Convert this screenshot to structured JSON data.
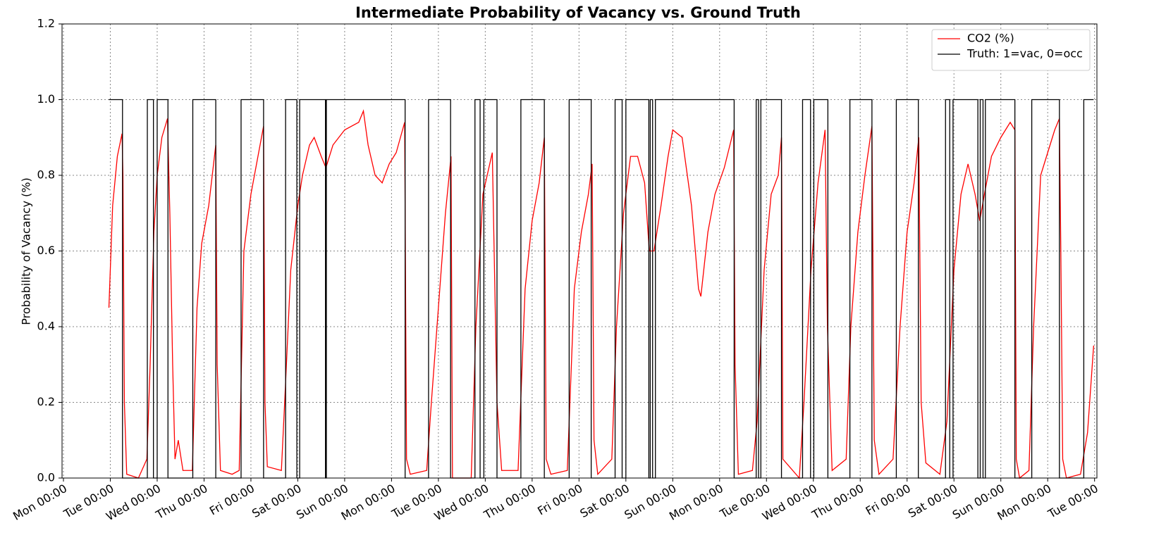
{
  "chart_data": {
    "type": "line",
    "title": "Intermediate Probability of Vacancy vs. Ground Truth",
    "y_label": "Probability of Vacancy (%)",
    "xlim": [
      -0.03,
      22.05
    ],
    "ylim": [
      0,
      1.2
    ],
    "xticks": [
      {
        "value": 0,
        "label": "Mon 00:00"
      },
      {
        "value": 1,
        "label": "Tue 00:00"
      },
      {
        "value": 2,
        "label": "Wed 00:00"
      },
      {
        "value": 3,
        "label": "Thu 00:00"
      },
      {
        "value": 4,
        "label": "Fri 00:00"
      },
      {
        "value": 5,
        "label": "Sat 00:00"
      },
      {
        "value": 6,
        "label": "Sun 00:00"
      },
      {
        "value": 7,
        "label": "Mon 00:00"
      },
      {
        "value": 8,
        "label": "Tue 00:00"
      },
      {
        "value": 9,
        "label": "Wed 00:00"
      },
      {
        "value": 10,
        "label": "Thu 00:00"
      },
      {
        "value": 11,
        "label": "Fri 00:00"
      },
      {
        "value": 12,
        "label": "Sat 00:00"
      },
      {
        "value": 13,
        "label": "Sun 00:00"
      },
      {
        "value": 14,
        "label": "Mon 00:00"
      },
      {
        "value": 15,
        "label": "Tue 00:00"
      },
      {
        "value": 16,
        "label": "Wed 00:00"
      },
      {
        "value": 17,
        "label": "Thu 00:00"
      },
      {
        "value": 18,
        "label": "Fri 00:00"
      },
      {
        "value": 19,
        "label": "Sat 00:00"
      },
      {
        "value": 20,
        "label": "Sun 00:00"
      },
      {
        "value": 21,
        "label": "Mon 00:00"
      },
      {
        "value": 22,
        "label": "Tue 00:00"
      }
    ],
    "yticks": [
      {
        "value": 0,
        "label": "0.0"
      },
      0.2,
      0.4,
      0.6,
      0.8,
      {
        "value": 1,
        "label": "1.0"
      },
      1.2
    ],
    "grid": true,
    "legend": "upper right",
    "series": [
      {
        "name": "CO2 (%)",
        "color": "#ff0000",
        "x": [
          0.97,
          1.05,
          1.15,
          1.25,
          1.27,
          1.3,
          1.35,
          1.6,
          1.78,
          1.85,
          1.93,
          2.0,
          2.1,
          2.22,
          2.27,
          2.33,
          2.38,
          2.45,
          2.55,
          2.75,
          2.85,
          2.95,
          3.1,
          3.25,
          3.28,
          3.35,
          3.6,
          3.75,
          3.85,
          4.0,
          4.15,
          4.27,
          4.3,
          4.35,
          4.65,
          4.72,
          4.85,
          5.0,
          5.1,
          5.25,
          5.35,
          5.5,
          5.6,
          5.75,
          6.0,
          6.3,
          6.4,
          6.5,
          6.65,
          6.8,
          6.95,
          7.1,
          7.28,
          7.32,
          7.4,
          7.75,
          7.85,
          8.0,
          8.15,
          8.27,
          8.3,
          8.7,
          8.8,
          8.95,
          9.15,
          9.25,
          9.35,
          9.7,
          9.85,
          10.0,
          10.15,
          10.26,
          10.3,
          10.4,
          10.75,
          10.9,
          11.05,
          11.2,
          11.28,
          11.32,
          11.4,
          11.7,
          11.8,
          11.95,
          12.1,
          12.25,
          12.4,
          12.5,
          12.6,
          12.75,
          12.9,
          13.0,
          13.2,
          13.4,
          13.55,
          13.6,
          13.75,
          13.9,
          14.1,
          14.3,
          14.33,
          14.4,
          14.7,
          14.8,
          14.95,
          15.1,
          15.25,
          15.32,
          15.35,
          15.7,
          15.8,
          15.95,
          16.1,
          16.25,
          16.3,
          16.4,
          16.7,
          16.8,
          16.95,
          17.1,
          17.25,
          17.3,
          17.4,
          17.7,
          17.85,
          18.0,
          18.15,
          18.25,
          18.3,
          18.4,
          18.7,
          18.85,
          19.0,
          19.15,
          19.3,
          19.45,
          19.55,
          19.65,
          19.8,
          20.0,
          20.2,
          20.3,
          20.33,
          20.4,
          20.6,
          20.7,
          20.85,
          21.0,
          21.15,
          21.25,
          21.28,
          21.32,
          21.4,
          21.7,
          21.85,
          21.98
        ],
        "values": [
          0.45,
          0.72,
          0.85,
          0.91,
          0.8,
          0.2,
          0.01,
          0,
          0.05,
          0.3,
          0.65,
          0.8,
          0.9,
          0.95,
          0.7,
          0.3,
          0.05,
          0.1,
          0.02,
          0.02,
          0.45,
          0.62,
          0.72,
          0.88,
          0.3,
          0.02,
          0.01,
          0.02,
          0.6,
          0.75,
          0.85,
          0.93,
          0.2,
          0.03,
          0.02,
          0.2,
          0.55,
          0.72,
          0.8,
          0.88,
          0.9,
          0.85,
          0.82,
          0.88,
          0.92,
          0.94,
          0.97,
          0.88,
          0.8,
          0.78,
          0.83,
          0.86,
          0.94,
          0.05,
          0.01,
          0.02,
          0.2,
          0.45,
          0.7,
          0.85,
          0,
          0,
          0.4,
          0.75,
          0.86,
          0.2,
          0.02,
          0.02,
          0.5,
          0.68,
          0.78,
          0.9,
          0.05,
          0.01,
          0.02,
          0.5,
          0.65,
          0.75,
          0.83,
          0.1,
          0.01,
          0.05,
          0.4,
          0.7,
          0.85,
          0.85,
          0.78,
          0.6,
          0.6,
          0.72,
          0.85,
          0.92,
          0.9,
          0.72,
          0.5,
          0.48,
          0.65,
          0.75,
          0.82,
          0.92,
          0.3,
          0.01,
          0.02,
          0.15,
          0.55,
          0.75,
          0.8,
          0.9,
          0.05,
          0,
          0.2,
          0.55,
          0.78,
          0.92,
          0.4,
          0.02,
          0.05,
          0.4,
          0.65,
          0.8,
          0.93,
          0.1,
          0.01,
          0.05,
          0.4,
          0.65,
          0.78,
          0.9,
          0.2,
          0.04,
          0.01,
          0.15,
          0.55,
          0.75,
          0.83,
          0.75,
          0.68,
          0.75,
          0.85,
          0.9,
          0.94,
          0.92,
          0.05,
          0,
          0.02,
          0.4,
          0.8,
          0.86,
          0.92,
          0.95,
          0.6,
          0.05,
          0,
          0.01,
          0.12,
          0.35
        ]
      },
      {
        "name": "Truth: 1=vac, 0=occ",
        "color": "#000000",
        "x": [
          0.97,
          1.26,
          1.26,
          1.79,
          1.79,
          1.92,
          1.92,
          2.0,
          2.0,
          2.23,
          2.23,
          2.76,
          2.76,
          3.25,
          3.25,
          3.79,
          3.79,
          4.27,
          4.27,
          4.74,
          4.74,
          4.98,
          4.98,
          5.04,
          5.04,
          5.59,
          5.59,
          5.61,
          5.61,
          7.29,
          7.29,
          7.79,
          7.79,
          8.26,
          8.26,
          8.78,
          8.78,
          8.89,
          8.89,
          8.97,
          8.97,
          9.25,
          9.25,
          9.76,
          9.76,
          10.26,
          10.26,
          10.79,
          10.79,
          11.26,
          11.26,
          11.77,
          11.77,
          11.92,
          11.92,
          12.0,
          12.0,
          12.49,
          12.49,
          12.52,
          12.52,
          12.57,
          12.57,
          12.63,
          12.63,
          14.31,
          14.31,
          14.78,
          14.78,
          14.83,
          14.83,
          14.88,
          14.88,
          15.32,
          15.32,
          15.77,
          15.77,
          15.94,
          15.94,
          16.01,
          16.01,
          16.31,
          16.31,
          16.78,
          16.78,
          17.25,
          17.25,
          17.77,
          17.77,
          18.24,
          18.24,
          18.82,
          18.82,
          18.91,
          18.91,
          18.98,
          18.98,
          19.51,
          19.51,
          19.56,
          19.56,
          19.62,
          19.62,
          19.67,
          19.67,
          20.3,
          20.3,
          20.66,
          20.66,
          21.25,
          21.25,
          21.77,
          21.77,
          21.98
        ],
        "values": [
          1,
          1,
          0,
          0,
          1,
          1,
          0,
          0,
          1,
          1,
          0,
          0,
          1,
          1,
          0,
          0,
          1,
          1,
          0,
          0,
          1,
          1,
          0,
          0,
          1,
          1,
          0,
          0,
          1,
          1,
          0,
          0,
          1,
          1,
          0,
          0,
          1,
          1,
          0,
          0,
          1,
          1,
          0,
          0,
          1,
          1,
          0,
          0,
          1,
          1,
          0,
          0,
          1,
          1,
          0,
          0,
          1,
          1,
          0,
          0,
          1,
          1,
          0,
          0,
          1,
          1,
          0,
          0,
          1,
          1,
          0,
          0,
          1,
          1,
          0,
          0,
          1,
          1,
          0,
          0,
          1,
          1,
          0,
          0,
          1,
          1,
          0,
          0,
          1,
          1,
          0,
          0,
          1,
          1,
          0,
          0,
          1,
          1,
          0,
          0,
          1,
          1,
          0,
          0,
          1,
          1,
          0,
          0,
          1,
          1,
          0,
          0,
          1,
          1
        ]
      }
    ]
  }
}
